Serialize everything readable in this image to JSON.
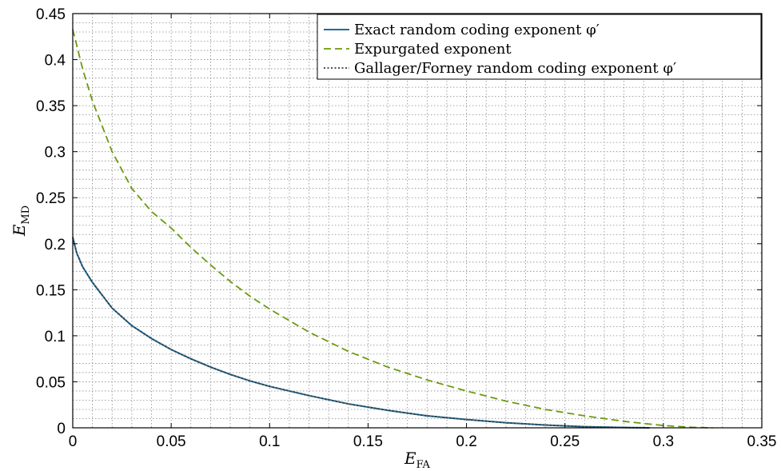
{
  "chart_data": {
    "type": "line",
    "xlabel": {
      "main": "E",
      "sub": "FA"
    },
    "ylabel": {
      "main": "E",
      "sub": "MD"
    },
    "xlim": [
      0,
      0.35
    ],
    "ylim": [
      0,
      0.45
    ],
    "xticks": [
      0,
      0.05,
      0.1,
      0.15,
      0.2,
      0.25,
      0.3,
      0.35
    ],
    "yticks": [
      0,
      0.05,
      0.1,
      0.15,
      0.2,
      0.25,
      0.3,
      0.35,
      0.4,
      0.45
    ],
    "xtick_labels": [
      "0",
      "0.05",
      "0.1",
      "0.15",
      "0.2",
      "0.25",
      "0.3",
      "0.35"
    ],
    "ytick_labels": [
      "0",
      "0.05",
      "0.1",
      "0.15",
      "0.2",
      "0.25",
      "0.3",
      "0.35",
      "0.4",
      "0.45"
    ],
    "minor_grid_divisions": 5,
    "grid": true,
    "legend_position": "top-right",
    "series": [
      {
        "name": "Exact random coding exponent φ′",
        "color": "#1f6b96",
        "style": "solid",
        "x": [
          0,
          0.002,
          0.005,
          0.01,
          0.02,
          0.03,
          0.04,
          0.05,
          0.06,
          0.07,
          0.08,
          0.09,
          0.1,
          0.12,
          0.14,
          0.16,
          0.18,
          0.2,
          0.22,
          0.24,
          0.26,
          0.28,
          0.293
        ],
        "y": [
          0.207,
          0.19,
          0.175,
          0.158,
          0.13,
          0.111,
          0.097,
          0.085,
          0.075,
          0.066,
          0.058,
          0.051,
          0.045,
          0.035,
          0.026,
          0.019,
          0.013,
          0.009,
          0.0055,
          0.003,
          0.0012,
          0.0003,
          0.0
        ]
      },
      {
        "name": "Expurgated exponent",
        "color": "#6b9a0e",
        "style": "dashed",
        "x": [
          0,
          0.005,
          0.01,
          0.02,
          0.03,
          0.04,
          0.05,
          0.06,
          0.07,
          0.08,
          0.09,
          0.1,
          0.12,
          0.14,
          0.16,
          0.18,
          0.2,
          0.22,
          0.24,
          0.26,
          0.28,
          0.3,
          0.315,
          0.325
        ],
        "y": [
          0.433,
          0.39,
          0.355,
          0.3,
          0.26,
          0.235,
          0.217,
          0.196,
          0.177,
          0.159,
          0.143,
          0.129,
          0.104,
          0.083,
          0.066,
          0.052,
          0.04,
          0.029,
          0.02,
          0.013,
          0.007,
          0.0025,
          0.0005,
          0.0
        ]
      },
      {
        "name": "Gallager/Forney random coding exponent φ′",
        "color": "#3a3a3a",
        "style": "dotted",
        "x": [
          0,
          0.002,
          0.005,
          0.01,
          0.02,
          0.03,
          0.04,
          0.05,
          0.06,
          0.07,
          0.08,
          0.09,
          0.1,
          0.12,
          0.14,
          0.16,
          0.18,
          0.2,
          0.22,
          0.24,
          0.26,
          0.28,
          0.293
        ],
        "y": [
          0.207,
          0.19,
          0.175,
          0.158,
          0.13,
          0.111,
          0.097,
          0.085,
          0.075,
          0.066,
          0.058,
          0.051,
          0.045,
          0.035,
          0.026,
          0.019,
          0.013,
          0.009,
          0.0055,
          0.003,
          0.0012,
          0.0003,
          0.0
        ]
      }
    ]
  }
}
